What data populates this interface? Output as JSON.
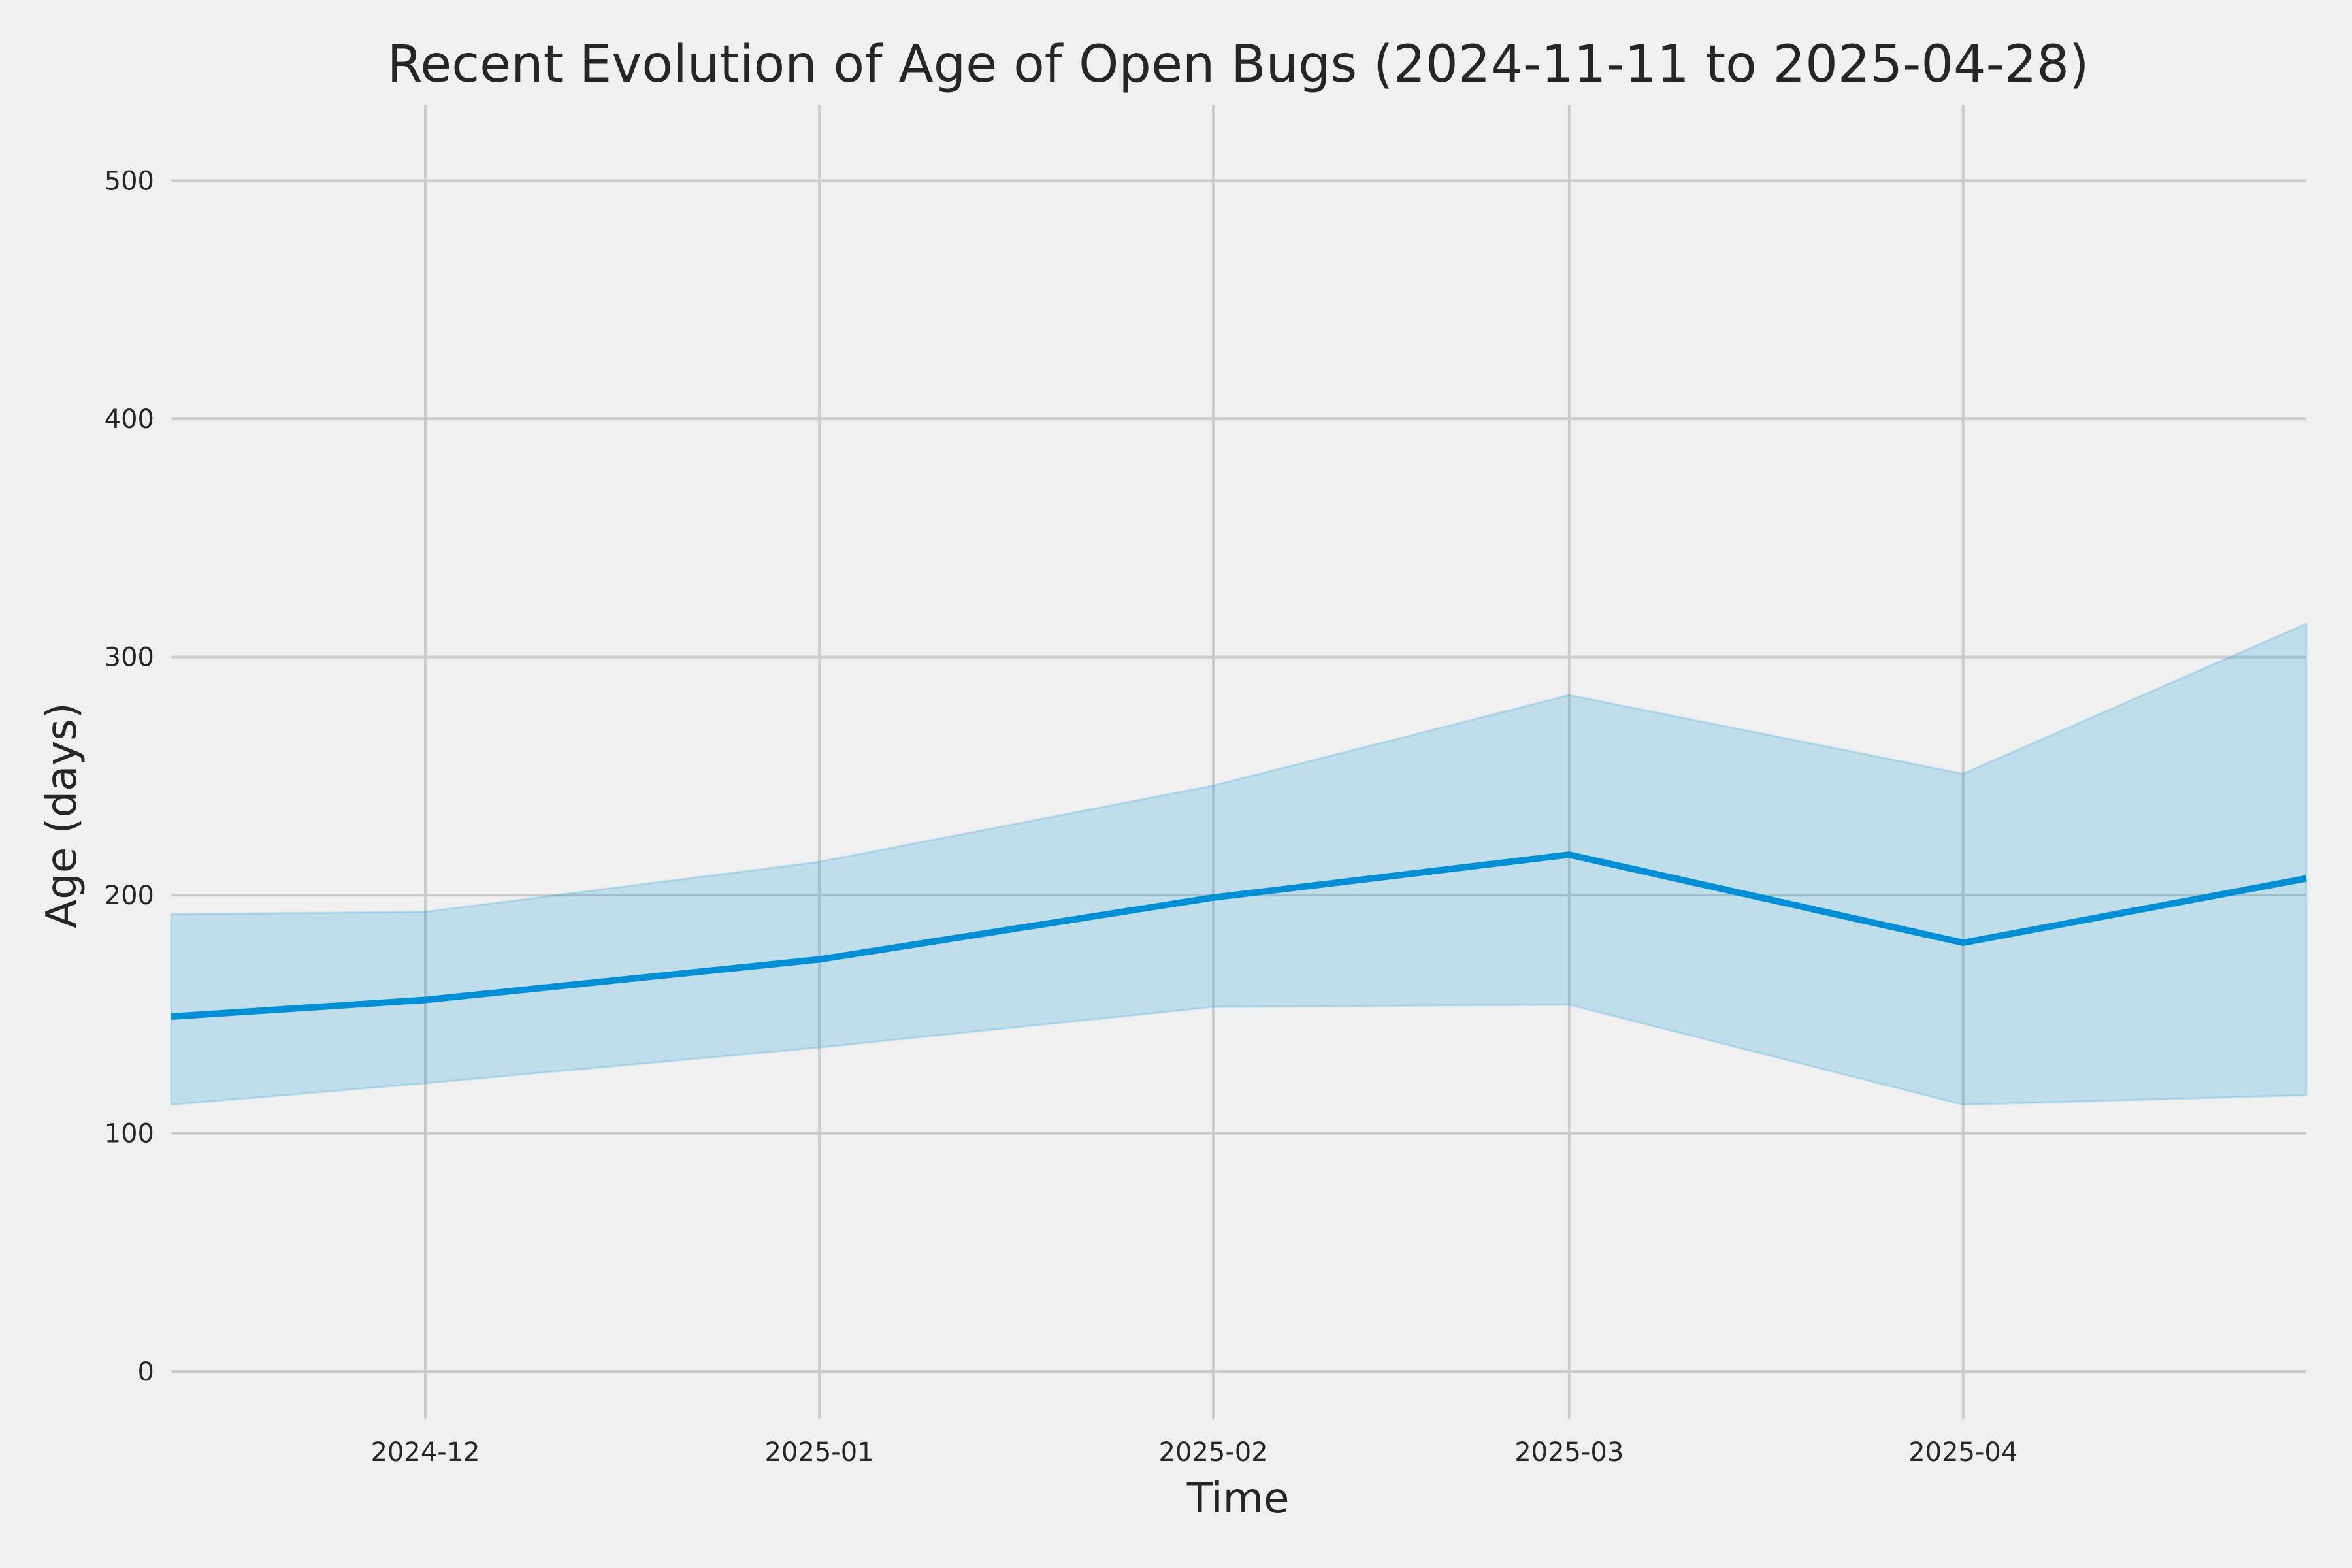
{
  "chart_data": {
    "type": "line",
    "title": "Recent Evolution of Age of Open Bugs (2024-11-11 to 2025-04-28)",
    "xlabel": "Time",
    "ylabel": "Age (days)",
    "xlim": [
      "2024-11-11",
      "2025-04-28"
    ],
    "ylim": [
      -20,
      532
    ],
    "grid": true,
    "x_ticks": [
      {
        "date": "2024-12-01",
        "label": "2024-12"
      },
      {
        "date": "2025-01-01",
        "label": "2025-01"
      },
      {
        "date": "2025-02-01",
        "label": "2025-02"
      },
      {
        "date": "2025-03-01",
        "label": "2025-03"
      },
      {
        "date": "2025-04-01",
        "label": "2025-04"
      }
    ],
    "y_ticks": [
      0,
      100,
      200,
      300,
      400,
      500
    ],
    "line_color": "#008fd5",
    "band_color": "#008fd5",
    "series": [
      {
        "x": [
          "2024-11-11",
          "2024-12-01",
          "2025-01-01",
          "2025-02-01",
          "2025-03-01",
          "2025-04-01",
          "2025-04-28"
        ],
        "y": [
          149,
          156,
          173,
          199,
          217,
          180,
          207
        ],
        "lower": [
          112,
          121,
          136,
          153,
          154,
          112,
          116
        ],
        "upper": [
          192,
          193,
          214,
          246,
          284,
          251,
          314
        ]
      }
    ]
  }
}
